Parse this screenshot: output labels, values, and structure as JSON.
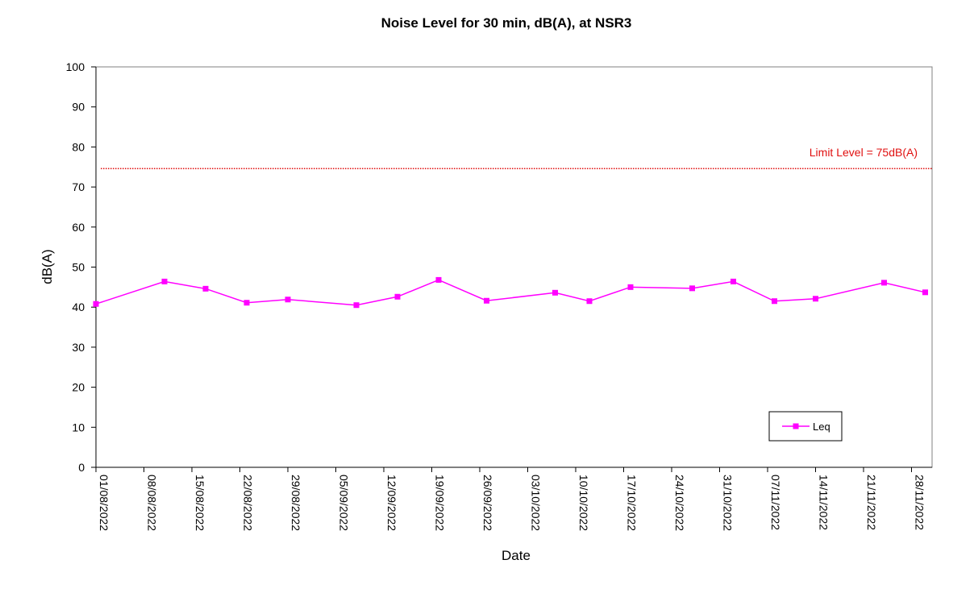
{
  "chart_data": {
    "type": "line",
    "title": "Noise Level for 30 min, dB(A), at NSR3",
    "xlabel": "Date",
    "ylabel": "dB(A)",
    "ylim": [
      0,
      100
    ],
    "yticks": [
      0,
      10,
      20,
      30,
      40,
      50,
      60,
      70,
      80,
      90,
      100
    ],
    "xlim": [
      "2022-08-01",
      "2022-12-01"
    ],
    "xticks": [
      "01/08/2022",
      "08/08/2022",
      "15/08/2022",
      "22/08/2022",
      "29/08/2022",
      "05/09/2022",
      "12/09/2022",
      "19/09/2022",
      "26/09/2022",
      "03/10/2022",
      "10/10/2022",
      "17/10/2022",
      "24/10/2022",
      "31/10/2022",
      "07/11/2022",
      "14/11/2022",
      "21/11/2022",
      "28/11/2022"
    ],
    "grid": false,
    "legend_position": "bottom-right",
    "series": [
      {
        "name": "Leq",
        "color": "#ff00ff",
        "marker": "square",
        "x": [
          "01/08/2022",
          "11/08/2022",
          "17/08/2022",
          "23/08/2022",
          "29/08/2022",
          "08/09/2022",
          "14/09/2022",
          "20/09/2022",
          "27/09/2022",
          "07/10/2022",
          "12/10/2022",
          "18/10/2022",
          "27/10/2022",
          "02/11/2022",
          "08/11/2022",
          "14/11/2022",
          "24/11/2022",
          "30/11/2022"
        ],
        "values": [
          40.8,
          46.4,
          44.6,
          41.1,
          41.9,
          40.5,
          42.6,
          46.8,
          41.6,
          43.6,
          41.5,
          45.0,
          44.7,
          46.4,
          41.5,
          42.1,
          46.1,
          43.7
        ]
      }
    ],
    "limit": {
      "value": 74.6,
      "label": "Limit Level = 75dB(A)",
      "color": "#e01010"
    }
  }
}
